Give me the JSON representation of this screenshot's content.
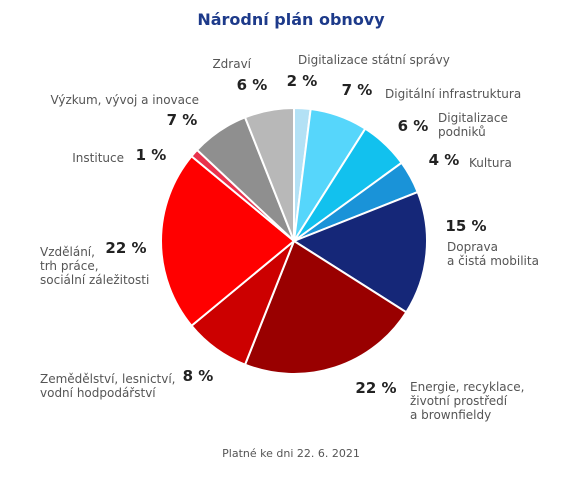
{
  "chart_data": {
    "type": "pie",
    "title": "Národní plán obnovy",
    "footnote": "Platné ke dni 22. 6. 2021",
    "unit": "%",
    "slices": [
      {
        "label": "Digitalizace státní správy",
        "label_lines": [
          "Digitalizace státní správy"
        ],
        "value": 2,
        "color": "#b3e1f5"
      },
      {
        "label": "Digitální infrastruktura",
        "label_lines": [
          "Digitální infrastruktura"
        ],
        "value": 7,
        "color": "#56d6fb"
      },
      {
        "label": "Digitalizace podniků",
        "label_lines": [
          "Digitalizace",
          "podniků"
        ],
        "value": 6,
        "color": "#12c1ee"
      },
      {
        "label": "Kultura",
        "label_lines": [
          "Kultura"
        ],
        "value": 4,
        "color": "#1a93d8"
      },
      {
        "label": "Doprava a čistá mobilita",
        "label_lines": [
          "Doprava",
          "a čistá mobilita"
        ],
        "value": 15,
        "color": "#152778"
      },
      {
        "label": "Energie, recyklace, životní prostředí a brownfieldy",
        "label_lines": [
          "Energie, recyklace,",
          "životní prostředí",
          "a brownfieldy"
        ],
        "value": 22,
        "color": "#990000"
      },
      {
        "label": "Zemědělství, lesnictví, vodní hodpodářství",
        "label_lines": [
          "Zemědělství, lesnictví,",
          "vodní hodpodářství"
        ],
        "value": 8,
        "color": "#cc0000"
      },
      {
        "label": "Vzdělání, trh práce, sociální záležitosti",
        "label_lines": [
          "Vzdělání,",
          "trh práce,",
          "sociální záležitosti"
        ],
        "value": 22,
        "color": "#ff0000"
      },
      {
        "label": "Instituce",
        "label_lines": [
          "Instituce"
        ],
        "value": 1,
        "color": "#e8334d"
      },
      {
        "label": "Výzkum, vývoj a inovace",
        "label_lines": [
          "Výzkum, vývoj a inovace"
        ],
        "value": 7,
        "color": "#8f8f8f"
      },
      {
        "label": "Zdraví",
        "label_lines": [
          "Zdraví"
        ],
        "value": 6,
        "color": "#b8b8b8"
      }
    ]
  }
}
